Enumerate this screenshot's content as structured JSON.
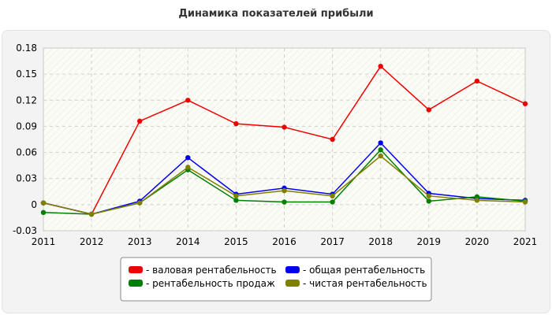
{
  "chart_data": {
    "type": "line",
    "title": "Динамика показателей прибыли",
    "xlabel": "",
    "ylabel": "",
    "categories": [
      "2011",
      "2012",
      "2013",
      "2014",
      "2015",
      "2016",
      "2017",
      "2018",
      "2019",
      "2020",
      "2021"
    ],
    "ylim": [
      -0.03,
      0.18
    ],
    "yticks": [
      "0.18",
      "0.15",
      "0.12",
      "0.09",
      "0.06",
      "0.03",
      "0",
      "-0.03"
    ],
    "ytick_values": [
      0.18,
      0.15,
      0.12,
      0.09,
      0.06,
      0.03,
      0,
      -0.03
    ],
    "grid": true,
    "legend_position": "bottom",
    "series": [
      {
        "name": "- валовая рентабельность",
        "color": "#ee0000",
        "values": [
          0.002,
          -0.011,
          0.096,
          0.12,
          0.093,
          0.089,
          0.075,
          0.159,
          0.109,
          0.142,
          0.116
        ]
      },
      {
        "name": "- общая рентабельность",
        "color": "#0000ee",
        "values": [
          0.002,
          -0.011,
          0.004,
          0.054,
          0.012,
          0.019,
          0.012,
          0.071,
          0.013,
          0.007,
          0.005
        ]
      },
      {
        "name": "- рентабельность продаж",
        "color": "#008000",
        "values": [
          -0.009,
          -0.011,
          0.002,
          0.04,
          0.005,
          0.003,
          0.003,
          0.063,
          0.004,
          0.009,
          0.004
        ]
      },
      {
        "name": "- чистая рентабельность",
        "color": "#808000",
        "values": [
          0.002,
          -0.011,
          0.002,
          0.043,
          0.01,
          0.016,
          0.01,
          0.056,
          0.01,
          0.005,
          0.003
        ]
      }
    ]
  }
}
